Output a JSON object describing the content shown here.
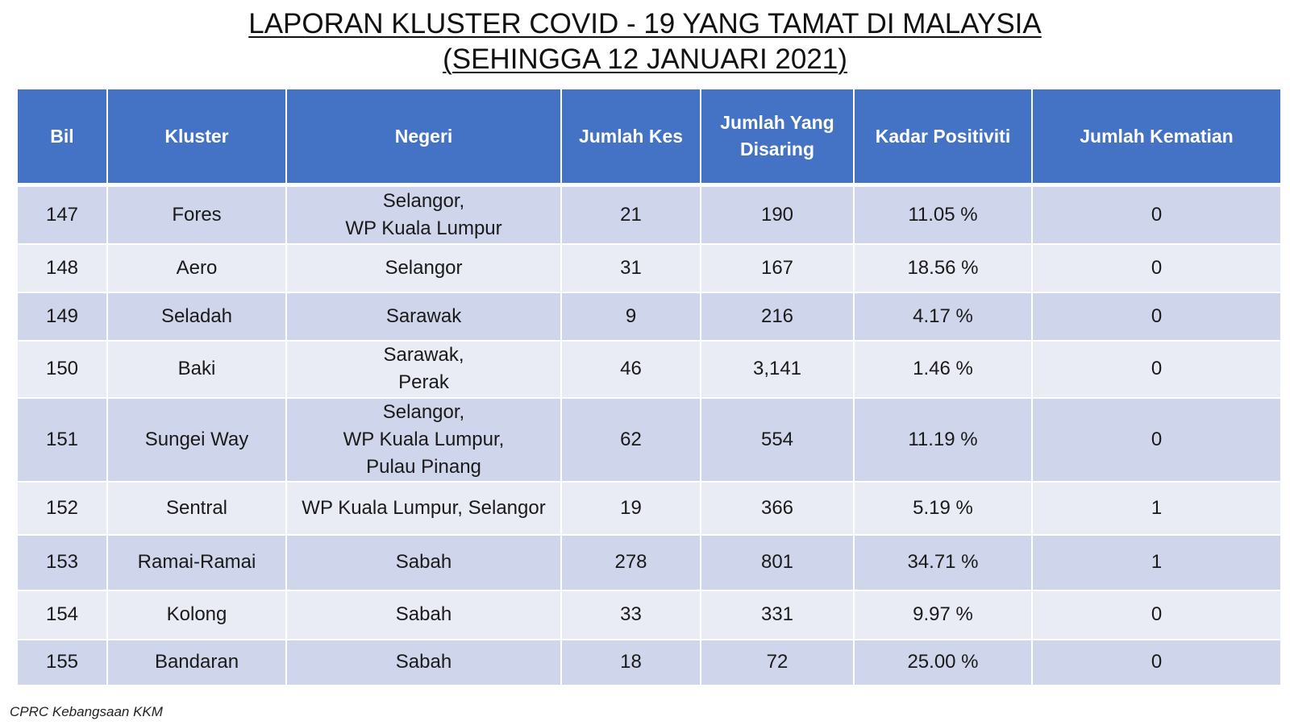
{
  "title": {
    "line1": "LAPORAN KLUSTER COVID - 19 YANG TAMAT DI MALAYSIA",
    "line2": "(SEHINGGA 12 JANUARI 2021)"
  },
  "table": {
    "headers": [
      "Bil",
      "Kluster",
      "Negeri",
      "Jumlah Kes",
      "Jumlah Yang\nDisaring",
      "Kadar Positiviti",
      "Jumlah Kematian"
    ],
    "rows": [
      [
        "147",
        "Fores",
        "Selangor,\nWP Kuala Lumpur",
        "21",
        "190",
        "11.05 %",
        "0"
      ],
      [
        "148",
        "Aero",
        "Selangor",
        "31",
        "167",
        "18.56 %",
        "0"
      ],
      [
        "149",
        "Seladah",
        "Sarawak",
        "9",
        "216",
        "4.17 %",
        "0"
      ],
      [
        "150",
        "Baki",
        "Sarawak,\nPerak",
        "46",
        "3,141",
        "1.46 %",
        "0"
      ],
      [
        "151",
        "Sungei Way",
        "Selangor,\nWP Kuala Lumpur,\nPulau Pinang",
        "62",
        "554",
        "11.19 %",
        "0"
      ],
      [
        "152",
        "Sentral",
        "WP Kuala Lumpur, Selangor",
        "19",
        "366",
        "5.19 %",
        "1"
      ],
      [
        "153",
        "Ramai-Ramai",
        "Sabah",
        "278",
        "801",
        "34.71 %",
        "1"
      ],
      [
        "154",
        "Kolong",
        "Sabah",
        "33",
        "331",
        "9.97 %",
        "0"
      ],
      [
        "155",
        "Bandaran",
        "Sabah",
        "18",
        "72",
        "25.00 %",
        "0"
      ]
    ]
  },
  "footer": "CPRC Kebangsaan KKM",
  "colors": {
    "header_bg": "#4472c4",
    "row_dark": "#cfd5ea",
    "row_light": "#e9ebf5"
  }
}
